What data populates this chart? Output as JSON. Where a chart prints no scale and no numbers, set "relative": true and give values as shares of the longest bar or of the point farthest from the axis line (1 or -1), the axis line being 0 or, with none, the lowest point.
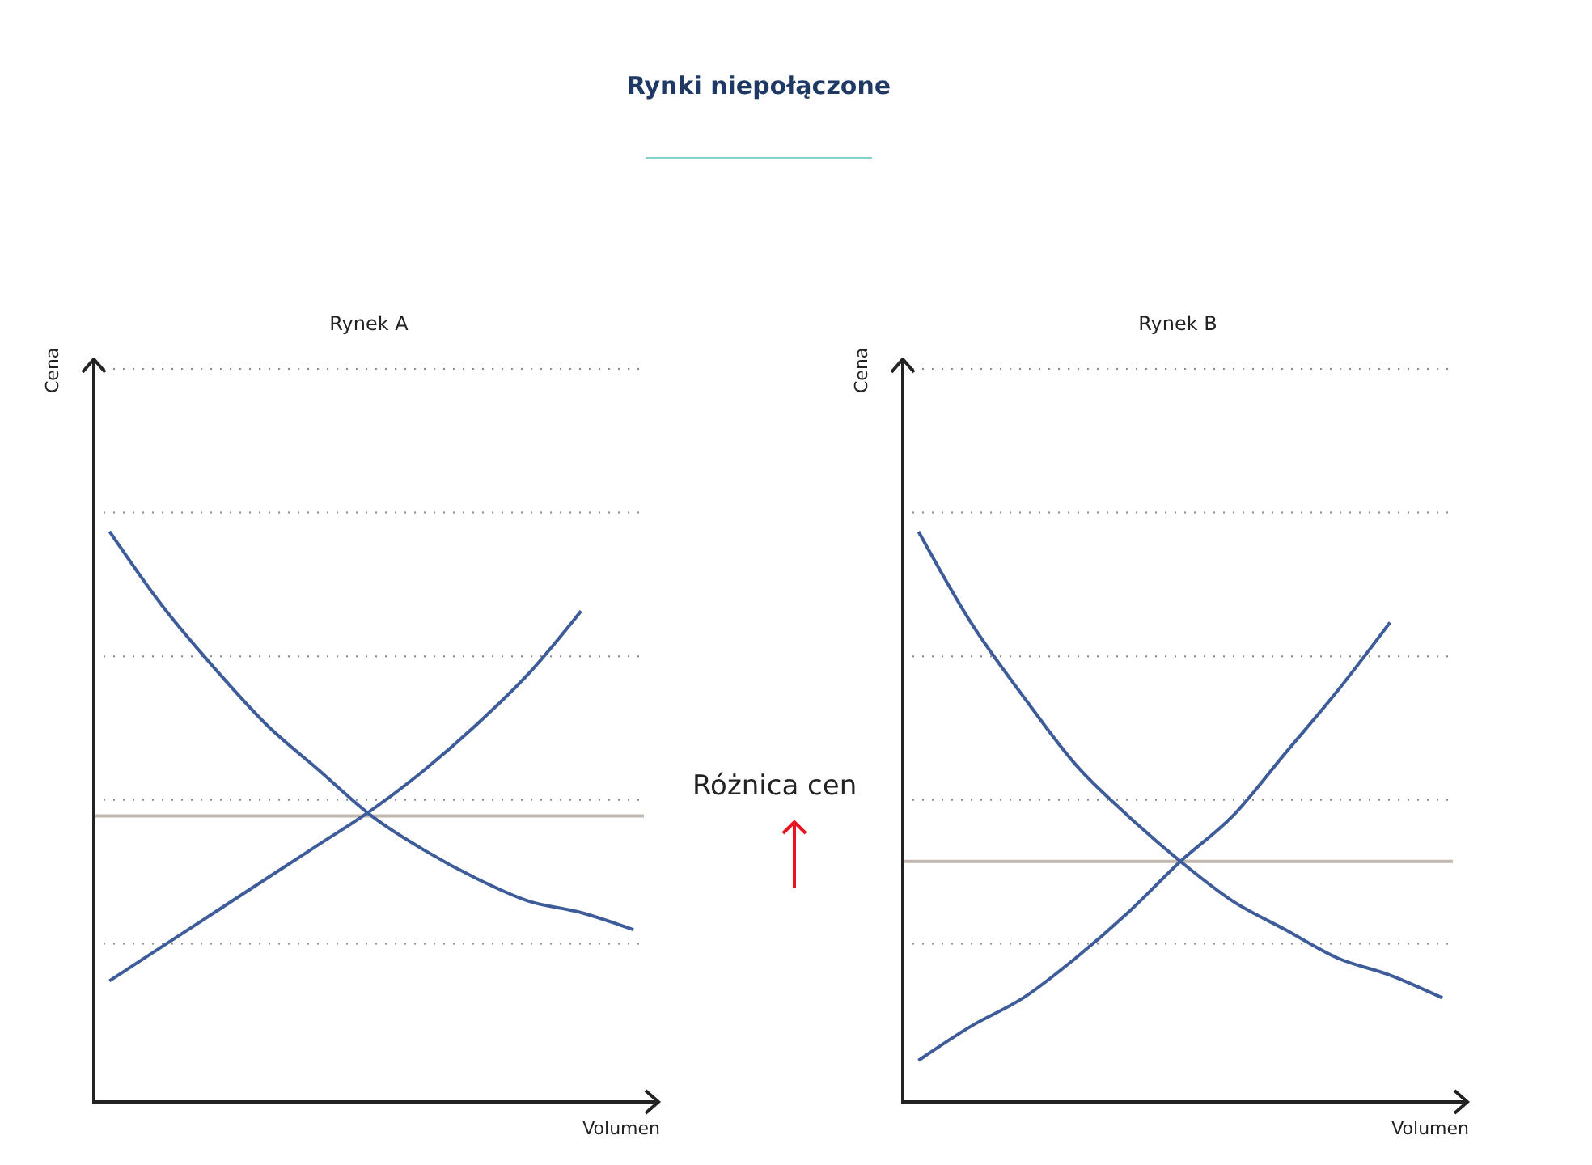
{
  "chart_data": [
    {
      "type": "line",
      "title": "Rynki niepołączone",
      "subtitle": "Rynek A",
      "xlabel": "Volumen",
      "ylabel": "Cena",
      "relative": true,
      "grid": "y",
      "marker": "none",
      "line_style": "solid",
      "categories": [
        null,
        null,
        null,
        null,
        null,
        null,
        null,
        null,
        null,
        null,
        null
      ],
      "series": [
        {
          "color": "#3d5c99",
          "values": [
            1,
            0.87,
            0.76,
            0.66,
            0.58,
            0.5,
            0.44,
            0.39,
            0.35,
            0.33,
            0.3
          ]
        },
        {
          "color": "#3d5c99",
          "values": [
            0.21,
            0.27,
            0.33,
            0.39,
            0.45,
            0.51,
            0.58,
            0.66,
            0.75,
            0.86,
            null
          ]
        }
      ],
      "ref_lines": [
        {
          "axis": "y",
          "value": 0.5,
          "color": "#c2b8ae"
        }
      ],
      "annotations": [
        "Różnica cen"
      ]
    },
    {
      "type": "line",
      "subtitle": "Rynek B",
      "xlabel": "Volumen",
      "ylabel": "Cena",
      "relative": true,
      "grid": "y",
      "marker": "none",
      "line_style": "solid",
      "categories": [
        null,
        null,
        null,
        null,
        null,
        null,
        null,
        null,
        null,
        null,
        null
      ],
      "series": [
        {
          "color": "#3d5c99",
          "values": [
            1,
            0.84,
            0.71,
            0.59,
            0.5,
            0.42,
            0.35,
            0.3,
            0.25,
            0.22,
            0.18
          ]
        },
        {
          "color": "#3d5c99",
          "values": [
            0.07,
            0.13,
            0.18,
            0.25,
            0.33,
            0.42,
            0.5,
            0.61,
            0.72,
            0.84,
            null
          ]
        }
      ],
      "ref_lines": [
        {
          "axis": "y",
          "value": 0.42,
          "color": "#c2b8ae"
        }
      ]
    }
  ]
}
